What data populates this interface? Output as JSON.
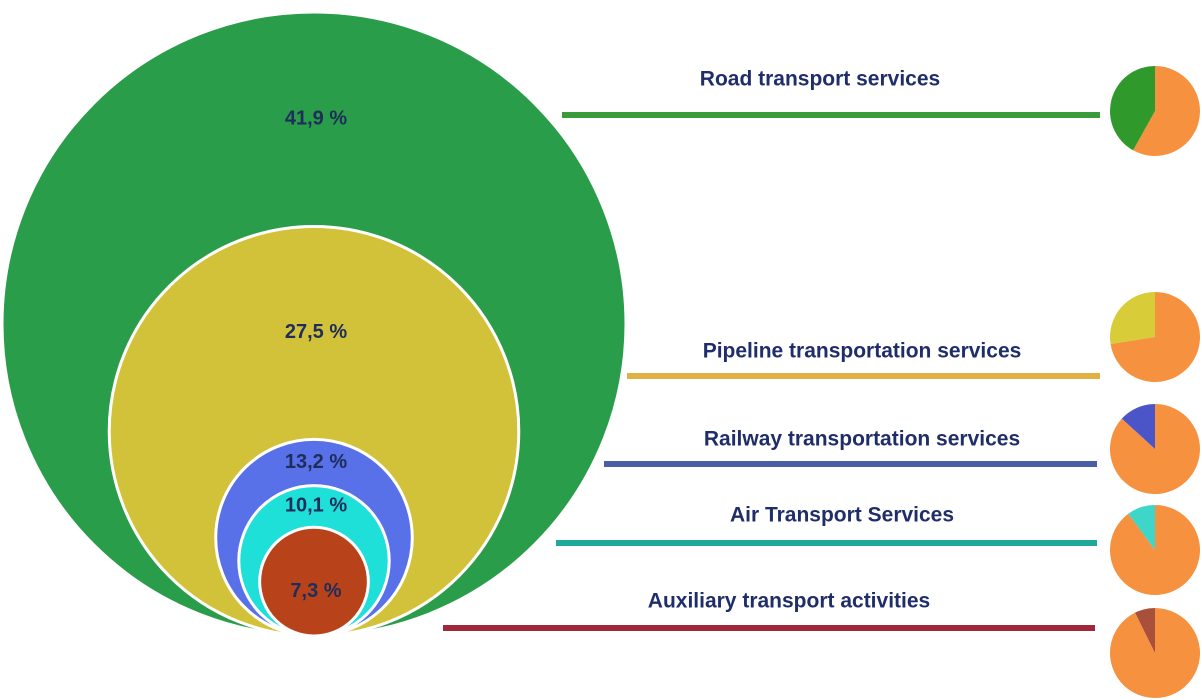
{
  "chart_data": {
    "type": "nested-circles",
    "categories": [
      "Road transport services",
      "Pipeline transportation services",
      "Railway transportation services",
      "Air Transport Services",
      "Auxiliary transport activities"
    ],
    "values": [
      41.9,
      27.5,
      13.2,
      10.1,
      7.3
    ],
    "value_labels": [
      "41,9 %",
      "27,5 %",
      "13,2 %",
      "10,1 %",
      "7,3 %"
    ],
    "colors": [
      "#2a9d4a",
      "#d2c23a",
      "#5870e8",
      "#1fe0d8",
      "#b8431a"
    ],
    "line_colors": [
      "#3a9b3d",
      "#e0b040",
      "#4a5ea8",
      "#1fa99a",
      "#a0283a"
    ],
    "pie_colors": [
      "#2f9a2b",
      "#d8cc38",
      "#4b55c8",
      "#3dd6c8",
      "#a8503a"
    ],
    "rest_color": "#f5913f"
  }
}
